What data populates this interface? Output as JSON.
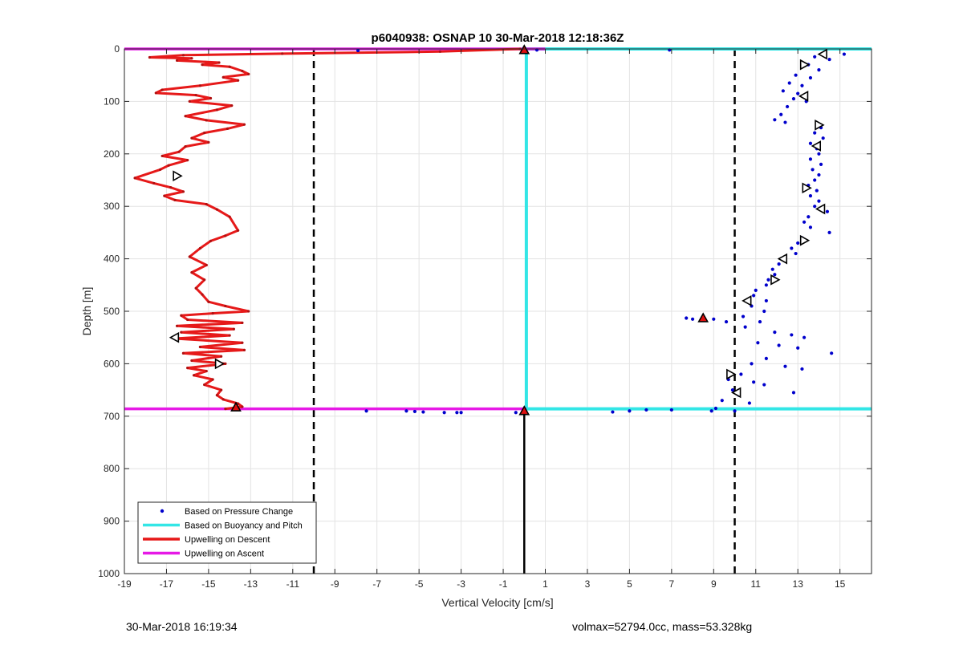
{
  "chart_data": {
    "type": "scatter",
    "title": "p6040938: OSNAP 10 30-Mar-2018 12:18:36Z",
    "xlabel": "Vertical Velocity [cm/s]",
    "ylabel": "Depth [m]",
    "xlim": [
      -19,
      16.5
    ],
    "ylim": [
      0,
      1000
    ],
    "y_reversed": true,
    "grid": true,
    "legend_position": "bottom-left",
    "x_ticks": [
      -19,
      -17,
      -15,
      -13,
      -11,
      -9,
      -7,
      -5,
      -3,
      -1,
      1,
      3,
      5,
      7,
      9,
      11,
      13,
      15
    ],
    "y_ticks": [
      0,
      100,
      200,
      300,
      400,
      500,
      600,
      700,
      800,
      900,
      1000
    ],
    "vertical_reference_lines": [
      -10,
      10
    ],
    "series": [
      {
        "name": "Based on Pressure Change",
        "style": "dots",
        "color": "#0000cc",
        "points": [
          [
            14.2,
            10
          ],
          [
            15.2,
            10
          ],
          [
            13.8,
            15
          ],
          [
            14.5,
            20
          ],
          [
            13.5,
            30
          ],
          [
            14.0,
            40
          ],
          [
            12.9,
            50
          ],
          [
            13.6,
            55
          ],
          [
            12.6,
            65
          ],
          [
            13.2,
            70
          ],
          [
            12.3,
            80
          ],
          [
            13.0,
            85
          ],
          [
            12.8,
            95
          ],
          [
            13.4,
            100
          ],
          [
            12.5,
            110
          ],
          [
            12.2,
            125
          ],
          [
            11.9,
            135
          ],
          [
            12.4,
            140
          ],
          [
            14.1,
            150
          ],
          [
            13.8,
            160
          ],
          [
            14.2,
            170
          ],
          [
            13.6,
            180
          ],
          [
            13.9,
            190
          ],
          [
            14.0,
            200
          ],
          [
            13.6,
            210
          ],
          [
            14.1,
            220
          ],
          [
            13.7,
            230
          ],
          [
            14.0,
            240
          ],
          [
            13.8,
            250
          ],
          [
            13.5,
            260
          ],
          [
            13.9,
            270
          ],
          [
            13.6,
            280
          ],
          [
            14.0,
            290
          ],
          [
            13.8,
            300
          ],
          [
            14.4,
            310
          ],
          [
            13.5,
            320
          ],
          [
            13.3,
            330
          ],
          [
            13.6,
            340
          ],
          [
            14.5,
            350
          ],
          [
            13.2,
            360
          ],
          [
            13.0,
            370
          ],
          [
            12.7,
            380
          ],
          [
            12.9,
            390
          ],
          [
            12.4,
            400
          ],
          [
            12.1,
            410
          ],
          [
            11.8,
            420
          ],
          [
            11.9,
            430
          ],
          [
            11.6,
            440
          ],
          [
            11.5,
            450
          ],
          [
            11.0,
            460
          ],
          [
            10.9,
            470
          ],
          [
            10.6,
            480
          ],
          [
            11.5,
            480
          ],
          [
            10.8,
            490
          ],
          [
            11.4,
            500
          ],
          [
            10.4,
            510
          ],
          [
            11.2,
            520
          ],
          [
            9.0,
            515
          ],
          [
            8.0,
            515
          ],
          [
            7.7,
            513
          ],
          [
            9.6,
            520
          ],
          [
            10.5,
            530
          ],
          [
            11.9,
            540
          ],
          [
            12.7,
            545
          ],
          [
            13.3,
            550
          ],
          [
            11.1,
            560
          ],
          [
            12.1,
            565
          ],
          [
            13.0,
            570
          ],
          [
            14.6,
            580
          ],
          [
            11.5,
            590
          ],
          [
            10.8,
            600
          ],
          [
            12.4,
            605
          ],
          [
            13.2,
            610
          ],
          [
            10.3,
            620
          ],
          [
            9.7,
            630
          ],
          [
            10.9,
            635
          ],
          [
            11.4,
            640
          ],
          [
            9.9,
            650
          ],
          [
            12.8,
            655
          ],
          [
            10.2,
            660
          ],
          [
            9.4,
            670
          ],
          [
            10.7,
            675
          ],
          [
            9.1,
            685
          ],
          [
            8.9,
            690
          ],
          [
            10.0,
            690
          ],
          [
            4.2,
            692
          ],
          [
            5.0,
            690
          ],
          [
            5.8,
            688
          ],
          [
            7.0,
            688
          ],
          [
            -7.5,
            690
          ],
          [
            -5.6,
            690
          ],
          [
            -5.2,
            691
          ],
          [
            -4.8,
            692
          ],
          [
            -3.8,
            693
          ],
          [
            -3.2,
            693
          ],
          [
            -3.0,
            693
          ],
          [
            -0.4,
            693
          ],
          [
            -7.9,
            3
          ],
          [
            6.9,
            2
          ],
          [
            0.6,
            2
          ]
        ]
      },
      {
        "name": "Based on Buoyancy and Pitch",
        "style": "line",
        "color": "#33e6e6",
        "path": [
          [
            16.5,
            0
          ],
          [
            0.1,
            0
          ],
          [
            0.1,
            686
          ],
          [
            16.5,
            686
          ]
        ]
      },
      {
        "name": "Upwelling on Descent",
        "style": "line",
        "color": "#e61919",
        "path": [
          [
            -0.2,
            0
          ],
          [
            -4,
            5
          ],
          [
            -11.5,
            9
          ],
          [
            -16.2,
            12
          ],
          [
            -17.8,
            16
          ],
          [
            -15.8,
            18
          ],
          [
            -16.5,
            22
          ],
          [
            -14.5,
            26
          ],
          [
            -15.3,
            30
          ],
          [
            -14.0,
            34
          ],
          [
            -13.4,
            42
          ],
          [
            -13.1,
            48
          ],
          [
            -14.3,
            54
          ],
          [
            -13.6,
            60
          ],
          [
            -15.4,
            70
          ],
          [
            -17.2,
            78
          ],
          [
            -17.5,
            84
          ],
          [
            -15.6,
            88
          ],
          [
            -14.9,
            94
          ],
          [
            -15.9,
            100
          ],
          [
            -13.9,
            108
          ],
          [
            -14.6,
            116
          ],
          [
            -16.1,
            128
          ],
          [
            -15.1,
            136
          ],
          [
            -13.3,
            144
          ],
          [
            -14.1,
            152
          ],
          [
            -15.2,
            160
          ],
          [
            -15.8,
            170
          ],
          [
            -15.0,
            178
          ],
          [
            -16.1,
            186
          ],
          [
            -16.4,
            196
          ],
          [
            -17.2,
            204
          ],
          [
            -16.0,
            212
          ],
          [
            -16.9,
            222
          ],
          [
            -17.3,
            230
          ],
          [
            -18.5,
            246
          ],
          [
            -17.6,
            256
          ],
          [
            -16.8,
            264
          ],
          [
            -16.2,
            272
          ],
          [
            -17.1,
            280
          ],
          [
            -16.6,
            288
          ],
          [
            -15.1,
            296
          ],
          [
            -14.6,
            306
          ],
          [
            -14.0,
            320
          ],
          [
            -13.6,
            346
          ],
          [
            -14.2,
            356
          ],
          [
            -14.9,
            366
          ],
          [
            -15.4,
            380
          ],
          [
            -15.9,
            396
          ],
          [
            -15.1,
            412
          ],
          [
            -15.8,
            426
          ],
          [
            -15.2,
            440
          ],
          [
            -15.6,
            456
          ],
          [
            -15.3,
            468
          ],
          [
            -15.0,
            482
          ],
          [
            -14.2,
            490
          ],
          [
            -13.1,
            500
          ],
          [
            -14.8,
            504
          ],
          [
            -16.3,
            508
          ],
          [
            -16.0,
            516
          ],
          [
            -13.4,
            522
          ],
          [
            -16.5,
            528
          ],
          [
            -13.8,
            534
          ],
          [
            -16.3,
            540
          ],
          [
            -14.0,
            546
          ],
          [
            -16.6,
            552
          ],
          [
            -13.4,
            560
          ],
          [
            -15.4,
            568
          ],
          [
            -13.3,
            574
          ],
          [
            -16.2,
            580
          ],
          [
            -14.4,
            586
          ],
          [
            -15.8,
            594
          ],
          [
            -14.2,
            600
          ],
          [
            -16.0,
            608
          ],
          [
            -15.1,
            614
          ],
          [
            -15.7,
            622
          ],
          [
            -14.8,
            630
          ],
          [
            -15.2,
            640
          ],
          [
            -14.4,
            650
          ],
          [
            -14.6,
            660
          ],
          [
            -14.3,
            668
          ],
          [
            -13.6,
            676
          ],
          [
            -13.4,
            682
          ],
          [
            -14.2,
            686
          ]
        ]
      },
      {
        "name": "Upwelling on Ascent",
        "style": "line",
        "color": "#e619e6",
        "path": [
          [
            -19,
            686
          ],
          [
            -10,
            686
          ],
          [
            -0.1,
            686
          ],
          [
            0.1,
            686
          ]
        ],
        "top_path": [
          [
            -19,
            0
          ],
          [
            1.0,
            0
          ]
        ]
      }
    ],
    "markers": {
      "black_triangles": [
        [
          14.2,
          10
        ],
        [
          13.3,
          30
        ],
        [
          13.3,
          90
        ],
        [
          14.0,
          145
        ],
        [
          13.9,
          185
        ],
        [
          13.4,
          265
        ],
        [
          14.1,
          305
        ],
        [
          13.3,
          365
        ],
        [
          12.3,
          400
        ],
        [
          11.9,
          440
        ],
        [
          10.6,
          480
        ],
        [
          9.8,
          620
        ],
        [
          10.1,
          655
        ],
        [
          -16.5,
          242
        ],
        [
          -16.6,
          550
        ],
        [
          -14.5,
          600
        ]
      ],
      "red_triangles": [
        [
          0.0,
          2
        ],
        [
          8.5,
          513
        ],
        [
          0.0,
          690
        ],
        [
          -13.7,
          683
        ]
      ]
    },
    "vertical_black_line": {
      "x": 0.0,
      "from": 690,
      "to": 1000
    }
  },
  "footer": {
    "timestamp": "30-Mar-2018 16:19:34",
    "info": "volmax=52794.0cc, mass=53.328kg"
  }
}
